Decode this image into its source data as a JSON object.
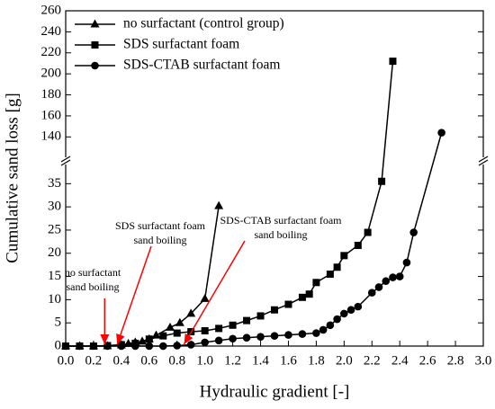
{
  "chart_data": {
    "type": "line",
    "xlabel": "Hydraulic gradient [-]",
    "ylabel": "Cumulative sand loss [g]",
    "xlim": [
      0,
      3
    ],
    "xticks": [
      {
        "value": 0,
        "label": "0.0"
      },
      0.2,
      0.4,
      0.6,
      0.8,
      {
        "value": 1,
        "label": "1.0"
      },
      1.2,
      1.4,
      1.6,
      1.8,
      {
        "value": 2,
        "label": "2.0"
      },
      2.2,
      2.4,
      2.6,
      2.8,
      {
        "value": 3,
        "label": "3.0"
      }
    ],
    "ylim": [
      0,
      260
    ],
    "ybreak": [
      37,
      130
    ],
    "yticks": [
      0,
      5,
      10,
      15,
      20,
      25,
      30,
      35,
      140,
      160,
      180,
      200,
      220,
      240,
      260
    ],
    "legend": "upper left",
    "series": [
      {
        "name": "no surfactant (control group)",
        "color": "#000000",
        "marker": "triangle",
        "x": [
          0,
          0.1,
          0.2,
          0.3,
          0.4,
          0.45,
          0.5,
          0.55,
          0.6,
          0.65,
          0.75,
          0.82,
          0.9,
          1.0,
          1.1
        ],
        "values": [
          0,
          0,
          0,
          0,
          0.2,
          0.5,
          0.8,
          1.0,
          1.5,
          2.3,
          4.0,
          5.0,
          7.0,
          10.2,
          30.2
        ]
      },
      {
        "name": "SDS surfactant foam",
        "color": "#000000",
        "marker": "square",
        "x": [
          0,
          0.1,
          0.2,
          0.3,
          0.4,
          0.5,
          0.6,
          0.7,
          0.8,
          0.9,
          1.0,
          1.1,
          1.2,
          1.3,
          1.4,
          1.5,
          1.6,
          1.7,
          1.75,
          1.8,
          1.9,
          1.95,
          2.0,
          2.1,
          2.17,
          2.27,
          2.35
        ],
        "values": [
          0,
          0,
          0,
          0.1,
          0.3,
          0.6,
          1.5,
          2.2,
          2.8,
          3.1,
          3.3,
          3.8,
          4.5,
          5.5,
          6.5,
          7.8,
          9.0,
          10.5,
          11.2,
          13.7,
          15.5,
          17.0,
          19.5,
          21.7,
          24.5,
          35.5,
          212
        ]
      },
      {
        "name": "SDS-CTAB surfactant foam",
        "color": "#000000",
        "marker": "circle",
        "x": [
          0,
          0.1,
          0.2,
          0.3,
          0.4,
          0.5,
          0.6,
          0.7,
          0.8,
          0.9,
          1.0,
          1.1,
          1.2,
          1.3,
          1.4,
          1.5,
          1.6,
          1.7,
          1.8,
          1.85,
          1.9,
          1.95,
          2.0,
          2.05,
          2.1,
          2.2,
          2.25,
          2.3,
          2.35,
          2.4,
          2.45,
          2.5,
          2.7
        ],
        "values": [
          0,
          0,
          0,
          0,
          0,
          0,
          0,
          0,
          0.1,
          0.3,
          0.8,
          1.2,
          1.6,
          1.8,
          2.0,
          2.2,
          2.4,
          2.6,
          2.8,
          3.5,
          4.5,
          5.8,
          7.0,
          7.8,
          8.5,
          11.5,
          12.7,
          14.0,
          14.8,
          15.0,
          18.0,
          24.5,
          144
        ]
      }
    ],
    "annotations": [
      {
        "lines": [
          "no surfactant",
          "sand boiling"
        ],
        "x": 0.28,
        "color": "#ff0000"
      },
      {
        "lines": [
          "SDS surfactant foam",
          "sand boiling"
        ],
        "x": 0.37,
        "color": "#ff0000"
      },
      {
        "lines": [
          "SDS-CTAB surfactant foam",
          "sand boiling"
        ],
        "x": 0.85,
        "color": "#ff0000"
      }
    ]
  }
}
